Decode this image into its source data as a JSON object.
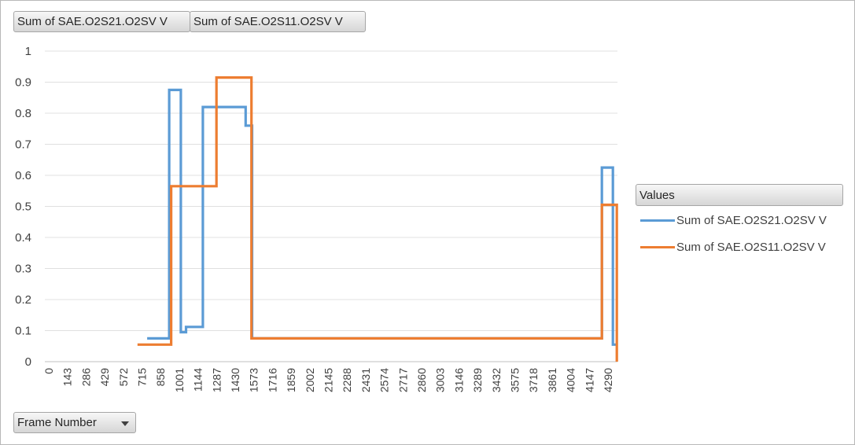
{
  "filters": {
    "value_buttons": [
      "Sum of SAE.O2S21.O2SV V",
      "Sum of SAE.O2S11.O2SV V"
    ],
    "axis_field": "Frame Number"
  },
  "legend": {
    "title": "Values",
    "items": [
      {
        "label": "Sum of SAE.O2S21.O2SV V",
        "color": "#5b9bd5"
      },
      {
        "label": "Sum of SAE.O2S11.O2SV V",
        "color": "#ed7d31"
      }
    ]
  },
  "chart_data": {
    "type": "line",
    "title": "",
    "xlabel": "",
    "ylabel": "",
    "x_tick_labels": [
      "0",
      "143",
      "286",
      "429",
      "572",
      "715",
      "858",
      "1001",
      "1144",
      "1287",
      "1430",
      "1573",
      "1716",
      "1859",
      "2002",
      "2145",
      "2288",
      "2431",
      "2574",
      "2717",
      "2860",
      "3003",
      "3146",
      "3289",
      "3432",
      "3575",
      "3718",
      "3861",
      "4004",
      "4147",
      "4290"
    ],
    "xlim": [
      0,
      4420
    ],
    "ylim": [
      0,
      1
    ],
    "y_ticks": [
      "0",
      "0.1",
      "0.2",
      "0.3",
      "0.4",
      "0.5",
      "0.6",
      "0.7",
      "0.8",
      "0.9",
      "1"
    ],
    "grid": true,
    "legend_position": "right",
    "series": [
      {
        "name": "Sum of SAE.O2S21.O2SV V",
        "color": "#5b9bd5",
        "points": [
          [
            790,
            0.075
          ],
          [
            960,
            0.075
          ],
          [
            960,
            0.875
          ],
          [
            1050,
            0.875
          ],
          [
            1050,
            0.095
          ],
          [
            1090,
            0.095
          ],
          [
            1090,
            0.112
          ],
          [
            1220,
            0.112
          ],
          [
            1220,
            0.82
          ],
          [
            1550,
            0.82
          ],
          [
            1550,
            0.76
          ],
          [
            1600,
            0.76
          ],
          [
            1600,
            0.075
          ],
          [
            4300,
            0.075
          ],
          [
            4300,
            0.625
          ],
          [
            4385,
            0.625
          ],
          [
            4385,
            0.055
          ],
          [
            4415,
            0.055
          ]
        ]
      },
      {
        "name": "Sum of SAE.O2S11.O2SV V",
        "color": "#ed7d31",
        "points": [
          [
            715,
            0.055
          ],
          [
            975,
            0.055
          ],
          [
            975,
            0.565
          ],
          [
            1325,
            0.565
          ],
          [
            1325,
            0.915
          ],
          [
            1595,
            0.915
          ],
          [
            1595,
            0.075
          ],
          [
            4300,
            0.075
          ],
          [
            4300,
            0.505
          ],
          [
            4415,
            0.505
          ],
          [
            4415,
            0.0
          ]
        ]
      }
    ]
  }
}
